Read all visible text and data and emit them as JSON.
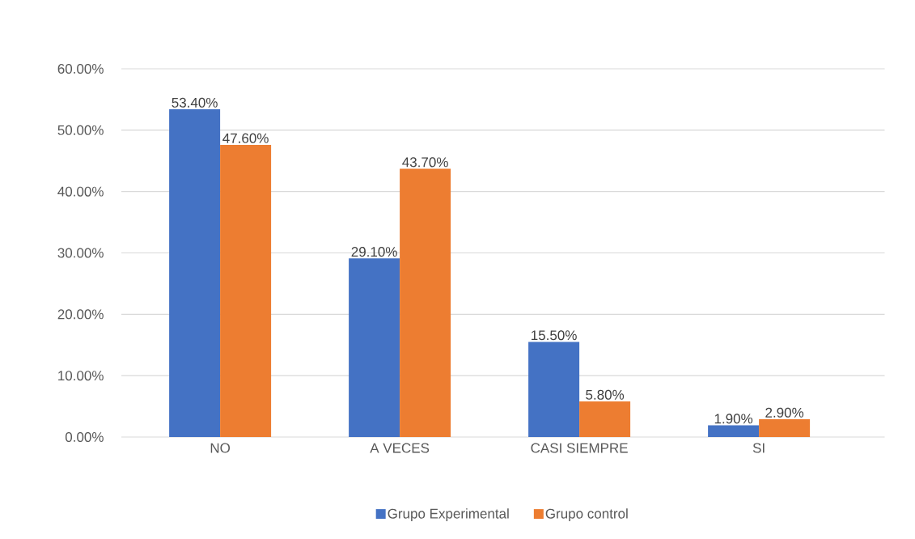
{
  "chart_data": {
    "type": "bar",
    "categories": [
      "NO",
      "A VECES",
      "CASI SIEMPRE",
      "SI"
    ],
    "series": [
      {
        "name": "Grupo Experimental",
        "color": "#4472c4",
        "values": [
          53.4,
          29.1,
          15.5,
          1.9
        ],
        "value_labels": [
          "53.40%",
          "29.10%",
          "15.50%",
          "1.90%"
        ]
      },
      {
        "name": "Grupo control",
        "color": "#ed7d31",
        "values": [
          47.6,
          43.7,
          5.8,
          2.9
        ],
        "value_labels": [
          "47.60%",
          "43.70%",
          "5.80%",
          "2.90%"
        ]
      }
    ],
    "ylim": [
      0,
      60
    ],
    "yticks": [
      {
        "value": 0,
        "label": "0.00%"
      },
      {
        "value": 10,
        "label": "10.00%"
      },
      {
        "value": 20,
        "label": "20.00%"
      },
      {
        "value": 30,
        "label": "30.00%"
      },
      {
        "value": 40,
        "label": "40.00%"
      },
      {
        "value": 50,
        "label": "50.00%"
      },
      {
        "value": 60,
        "label": "60.00%"
      }
    ],
    "grid": "y",
    "legend": "bottom"
  }
}
